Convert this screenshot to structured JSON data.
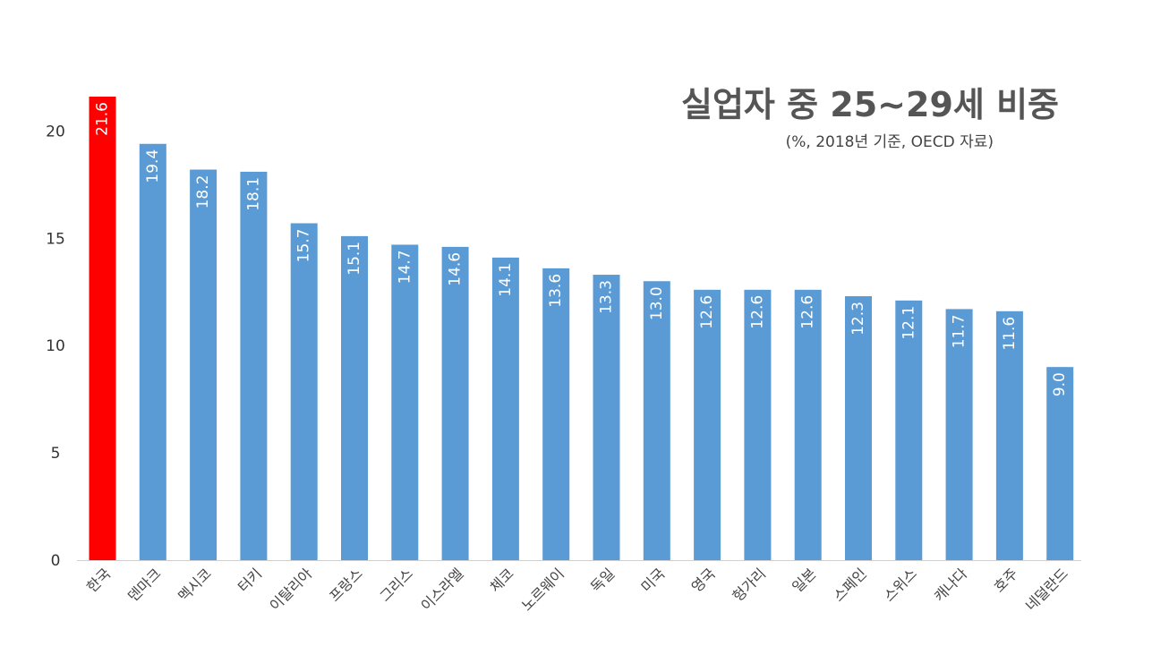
{
  "chart_data": {
    "type": "bar",
    "title": "실업자 중 25~29세 비중",
    "subtitle": "(%, 2018년 기준, OECD 자료)",
    "categories": [
      "한국",
      "덴마크",
      "멕시코",
      "터키",
      "이탈리아",
      "프랑스",
      "그리스",
      "이스라엘",
      "체코",
      "노르웨이",
      "독일",
      "미국",
      "영국",
      "헝가리",
      "일본",
      "스페인",
      "스위스",
      "캐나다",
      "호주",
      "네덜란드"
    ],
    "values": [
      21.6,
      19.4,
      18.2,
      18.1,
      15.7,
      15.1,
      14.7,
      14.6,
      14.1,
      13.6,
      13.3,
      13.0,
      12.6,
      12.6,
      12.6,
      12.3,
      12.1,
      11.7,
      11.6,
      9.0
    ],
    "value_labels": [
      "21.6",
      "19.4",
      "18.2",
      "18.1",
      "15.7",
      "15.1",
      "14.7",
      "14.6",
      "14.1",
      "13.6",
      "13.3",
      "13.0",
      "12.6",
      "12.6",
      "12.6",
      "12.3",
      "12.1",
      "11.7",
      "11.6",
      "9.0"
    ],
    "ylim": [
      0,
      21.6
    ],
    "yticks": [
      0,
      5,
      10,
      15,
      20
    ],
    "ytick_labels": [
      "0",
      "5",
      "10",
      "15",
      "20"
    ],
    "highlight_index": 0,
    "colors": {
      "bar": "#5b9bd5",
      "highlight": "#ff0000",
      "value_label": "#ffffff",
      "axis": "#d0d0d0",
      "tick_text": "#333333"
    },
    "grid": false,
    "legend": "none"
  }
}
